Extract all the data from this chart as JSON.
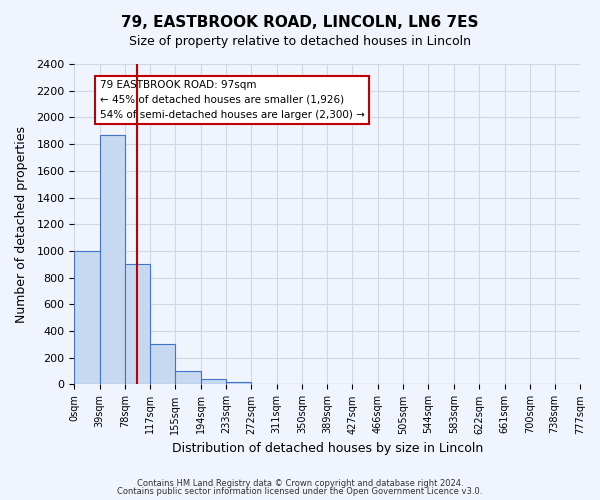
{
  "title1": "79, EASTBROOK ROAD, LINCOLN, LN6 7ES",
  "title2": "Size of property relative to detached houses in Lincoln",
  "xlabel": "Distribution of detached houses by size in Lincoln",
  "ylabel": "Number of detached properties",
  "bar_values": [
    1000,
    1870,
    900,
    300,
    100,
    40,
    20,
    0,
    0,
    0,
    0,
    0,
    0,
    0,
    0,
    0,
    0,
    0,
    0,
    0
  ],
  "bin_edges": [
    0,
    39,
    78,
    117,
    155,
    194,
    233,
    272,
    311,
    350,
    389,
    427,
    466,
    505,
    544,
    583,
    622,
    661,
    700,
    738,
    777
  ],
  "tick_labels": [
    "0sqm",
    "39sqm",
    "78sqm",
    "117sqm",
    "155sqm",
    "194sqm",
    "233sqm",
    "272sqm",
    "311sqm",
    "350sqm",
    "389sqm",
    "427sqm",
    "466sqm",
    "505sqm",
    "544sqm",
    "583sqm",
    "622sqm",
    "661sqm",
    "700sqm",
    "738sqm",
    "777sqm"
  ],
  "bar_color": "#c6d9f0",
  "bar_edge_color": "#4472c4",
  "property_line_x": 97,
  "property_line_color": "#c00000",
  "ylim": [
    0,
    2400
  ],
  "yticks": [
    0,
    200,
    400,
    600,
    800,
    1000,
    1200,
    1400,
    1600,
    1800,
    2000,
    2200,
    2400
  ],
  "annotation_title": "79 EASTBROOK ROAD: 97sqm",
  "annotation_line1": "← 45% of detached houses are smaller (1,926)",
  "annotation_line2": "54% of semi-detached houses are larger (2,300) →",
  "annotation_box_color": "#ffffff",
  "annotation_box_edge": "#c00000",
  "footer1": "Contains HM Land Registry data © Crown copyright and database right 2024.",
  "footer2": "Contains public sector information licensed under the Open Government Licence v3.0.",
  "grid_color": "#d0d8e8",
  "background_color": "#f0f4fc"
}
